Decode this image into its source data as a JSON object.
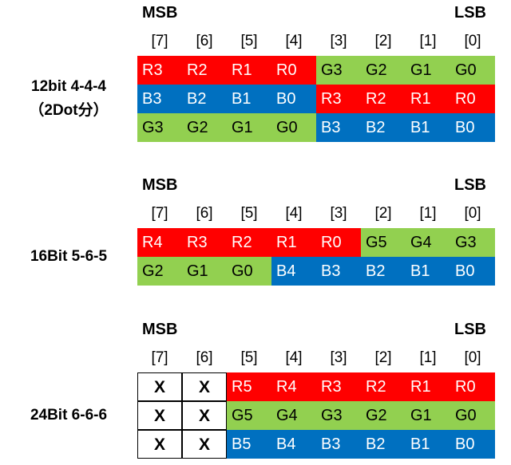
{
  "colors": {
    "red": "#ff0000",
    "green": "#92d050",
    "blue": "#0070c0",
    "x": "#ffffff"
  },
  "bit_indices": [
    "[7]",
    "[6]",
    "[5]",
    "[4]",
    "[3]",
    "[2]",
    "[1]",
    "[0]"
  ],
  "sections": [
    {
      "msb": "MSB",
      "lsb": "LSB",
      "label_lines": [
        "12bit 4-4-4",
        "（2Dot分）"
      ],
      "rows": [
        [
          {
            "t": "R3",
            "c": "red"
          },
          {
            "t": "R2",
            "c": "red"
          },
          {
            "t": "R1",
            "c": "red"
          },
          {
            "t": "R0",
            "c": "red"
          },
          {
            "t": "G3",
            "c": "green"
          },
          {
            "t": "G2",
            "c": "green"
          },
          {
            "t": "G1",
            "c": "green"
          },
          {
            "t": "G0",
            "c": "green"
          }
        ],
        [
          {
            "t": "B3",
            "c": "blue"
          },
          {
            "t": "B2",
            "c": "blue"
          },
          {
            "t": "B1",
            "c": "blue"
          },
          {
            "t": "B0",
            "c": "blue"
          },
          {
            "t": "R3",
            "c": "red"
          },
          {
            "t": "R2",
            "c": "red"
          },
          {
            "t": "R1",
            "c": "red"
          },
          {
            "t": "R0",
            "c": "red"
          }
        ],
        [
          {
            "t": "G3",
            "c": "green"
          },
          {
            "t": "G2",
            "c": "green"
          },
          {
            "t": "G1",
            "c": "green"
          },
          {
            "t": "G0",
            "c": "green"
          },
          {
            "t": "B3",
            "c": "blue"
          },
          {
            "t": "B2",
            "c": "blue"
          },
          {
            "t": "B1",
            "c": "blue"
          },
          {
            "t": "B0",
            "c": "blue"
          }
        ]
      ]
    },
    {
      "msb": "MSB",
      "lsb": "LSB",
      "label_lines": [
        "16Bit 5-6-5"
      ],
      "rows": [
        [
          {
            "t": "R4",
            "c": "red"
          },
          {
            "t": "R3",
            "c": "red"
          },
          {
            "t": "R2",
            "c": "red"
          },
          {
            "t": "R1",
            "c": "red"
          },
          {
            "t": "R0",
            "c": "red"
          },
          {
            "t": "G5",
            "c": "green"
          },
          {
            "t": "G4",
            "c": "green"
          },
          {
            "t": "G3",
            "c": "green"
          }
        ],
        [
          {
            "t": "G2",
            "c": "green"
          },
          {
            "t": "G1",
            "c": "green"
          },
          {
            "t": "G0",
            "c": "green"
          },
          {
            "t": "B4",
            "c": "blue"
          },
          {
            "t": "B3",
            "c": "blue"
          },
          {
            "t": "B2",
            "c": "blue"
          },
          {
            "t": "B1",
            "c": "blue"
          },
          {
            "t": "B0",
            "c": "blue"
          }
        ]
      ]
    },
    {
      "msb": "MSB",
      "lsb": "LSB",
      "label_lines": [
        "24Bit 6-6-6"
      ],
      "rows": [
        [
          {
            "t": "X",
            "c": "x"
          },
          {
            "t": "X",
            "c": "x"
          },
          {
            "t": "R5",
            "c": "red"
          },
          {
            "t": "R4",
            "c": "red"
          },
          {
            "t": "R3",
            "c": "red"
          },
          {
            "t": "R2",
            "c": "red"
          },
          {
            "t": "R1",
            "c": "red"
          },
          {
            "t": "R0",
            "c": "red"
          }
        ],
        [
          {
            "t": "X",
            "c": "x"
          },
          {
            "t": "X",
            "c": "x"
          },
          {
            "t": "G5",
            "c": "green"
          },
          {
            "t": "G4",
            "c": "green"
          },
          {
            "t": "G3",
            "c": "green"
          },
          {
            "t": "G2",
            "c": "green"
          },
          {
            "t": "G1",
            "c": "green"
          },
          {
            "t": "G0",
            "c": "green"
          }
        ],
        [
          {
            "t": "X",
            "c": "x"
          },
          {
            "t": "X",
            "c": "x"
          },
          {
            "t": "B5",
            "c": "blue"
          },
          {
            "t": "B4",
            "c": "blue"
          },
          {
            "t": "B3",
            "c": "blue"
          },
          {
            "t": "B2",
            "c": "blue"
          },
          {
            "t": "B1",
            "c": "blue"
          },
          {
            "t": "B0",
            "c": "blue"
          }
        ]
      ]
    }
  ]
}
